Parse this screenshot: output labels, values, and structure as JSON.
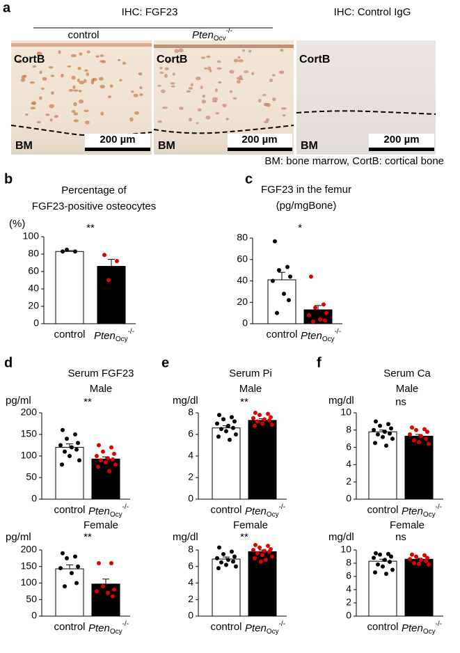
{
  "figure": {
    "panel": "a",
    "header_left": "IHC: FGF23",
    "header_right": "IHC: Control IgG",
    "columns": [
      "control",
      {
        "base": "Pten",
        "sub": "Ocy",
        "sup": "-/-"
      }
    ],
    "images": [
      {
        "top_label": "CortB",
        "bottom_label": "BM",
        "scale": "200 µm"
      },
      {
        "top_label": "CortB",
        "bottom_label": "BM",
        "scale": "200 µm"
      },
      {
        "top_label": "CortB",
        "bottom_label": "BM",
        "scale": "200 µm"
      }
    ],
    "caption": "BM: bone marrow, CortB: cortical bone"
  },
  "chart_data": [
    {
      "type": "bar",
      "panel": "b",
      "title": [
        "Percentage of",
        "FGF23-positive osteocytes"
      ],
      "y_unit": "(%)",
      "annotation": "**",
      "categories": [
        "control",
        {
          "base": "Pten",
          "sub": "Ocy",
          "sup": "-/-"
        }
      ],
      "values": [
        83,
        66
      ],
      "errors": [
        1,
        8
      ],
      "points": [
        [
          83,
          83,
          85
        ],
        [
          79,
          72,
          50
        ]
      ],
      "colors": [
        "#ffffff",
        "#000000"
      ],
      "point_colors": [
        "#000000",
        "#e00000"
      ],
      "ylim": [
        0,
        100
      ],
      "yticks": [
        0,
        20,
        40,
        60,
        80,
        100
      ]
    },
    {
      "type": "bar",
      "panel": "c",
      "title": [
        "FGF23 in the femur",
        "(pg/mgBone)"
      ],
      "annotation": "*",
      "categories": [
        "control",
        {
          "base": "Pten",
          "sub": "Ocy",
          "sup": "-/-"
        }
      ],
      "values": [
        41,
        13
      ],
      "errors": [
        7,
        4
      ],
      "points": [
        [
          77,
          53,
          50,
          44,
          40,
          28,
          22,
          10
        ],
        [
          44,
          18,
          15,
          10,
          8,
          4,
          3,
          2
        ]
      ],
      "colors": [
        "#ffffff",
        "#000000"
      ],
      "point_colors": [
        "#000000",
        "#e00000"
      ],
      "ylim": [
        0,
        80
      ],
      "yticks": [
        0,
        20,
        40,
        60,
        80
      ]
    },
    {
      "type": "bar",
      "panel": "d",
      "title": [
        "Serum FGF23"
      ],
      "subtitle": "Male",
      "y_unit": "pg/ml",
      "annotation": "**",
      "categories": [
        "control",
        {
          "base": "Pten",
          "sub": "Ocy",
          "sup": "-/-"
        }
      ],
      "values": [
        120,
        93
      ],
      "errors": [
        8,
        5
      ],
      "points": [
        [
          160,
          150,
          140,
          130,
          125,
          120,
          115,
          110,
          100,
          90,
          80
        ],
        [
          125,
          120,
          110,
          105,
          100,
          95,
          92,
          90,
          85,
          80,
          75,
          65
        ]
      ],
      "colors": [
        "#ffffff",
        "#000000"
      ],
      "point_colors": [
        "#000000",
        "#e00000"
      ],
      "ylim": [
        0,
        200
      ],
      "yticks": [
        0,
        50,
        100,
        150,
        200
      ]
    },
    {
      "type": "bar",
      "subtitle": "Female",
      "y_unit": "pg/ml",
      "annotation": "**",
      "categories": [
        "control",
        {
          "base": "Pten",
          "sub": "Ocy",
          "sup": "-/-"
        }
      ],
      "values": [
        143,
        97
      ],
      "errors": [
        12,
        15
      ],
      "points": [
        [
          190,
          180,
          175,
          150,
          145,
          130,
          100,
          90
        ],
        [
          160,
          160,
          90,
          80,
          75,
          70,
          60
        ]
      ],
      "colors": [
        "#ffffff",
        "#000000"
      ],
      "point_colors": [
        "#000000",
        "#e00000"
      ],
      "ylim": [
        0,
        200
      ],
      "yticks": [
        0,
        50,
        100,
        150,
        200
      ]
    },
    {
      "type": "bar",
      "panel": "e",
      "title": [
        "Serum Pi"
      ],
      "subtitle": "Male",
      "y_unit": "mg/dl",
      "annotation": "**",
      "categories": [
        "control",
        {
          "base": "Pten",
          "sub": "Ocy",
          "sup": "-/-"
        }
      ],
      "values": [
        6.6,
        7.3
      ],
      "errors": [
        0.2,
        0.15
      ],
      "points": [
        [
          7.8,
          7.6,
          7.4,
          7.2,
          7,
          6.8,
          6.6,
          6.5,
          6.3,
          6,
          5.8,
          5.5
        ],
        [
          8,
          7.9,
          7.8,
          7.6,
          7.5,
          7.4,
          7.3,
          7.2,
          7,
          6.9,
          6.8
        ]
      ],
      "colors": [
        "#ffffff",
        "#000000"
      ],
      "point_colors": [
        "#000000",
        "#e00000"
      ],
      "ylim": [
        0,
        8
      ],
      "yticks": [
        0,
        2,
        4,
        6,
        8
      ]
    },
    {
      "type": "bar",
      "subtitle": "Female",
      "y_unit": "mg/dl",
      "annotation": "**",
      "categories": [
        "control",
        {
          "base": "Pten",
          "sub": "Ocy",
          "sup": "-/-"
        }
      ],
      "values": [
        6.9,
        7.8
      ],
      "errors": [
        0.25,
        0.2
      ],
      "points": [
        [
          8.3,
          7.8,
          7.5,
          7.2,
          7,
          6.8,
          6.6,
          6.5,
          6.2,
          6,
          5.8
        ],
        [
          8.6,
          8.5,
          8.3,
          8.1,
          8,
          7.9,
          7.8,
          7.6,
          7.4,
          7.2,
          7,
          6.8,
          6.6
        ]
      ],
      "colors": [
        "#ffffff",
        "#000000"
      ],
      "point_colors": [
        "#000000",
        "#e00000"
      ],
      "ylim": [
        0,
        8
      ],
      "yticks": [
        0,
        2,
        4,
        6,
        8
      ]
    },
    {
      "type": "bar",
      "panel": "f",
      "title": [
        "Serum Ca"
      ],
      "subtitle": "Male",
      "y_unit": "mg/dl",
      "annotation": "ns",
      "categories": [
        "control",
        {
          "base": "Pten",
          "sub": "Ocy",
          "sup": "-/-"
        }
      ],
      "values": [
        7.8,
        7.3
      ],
      "errors": [
        0.2,
        0.2
      ],
      "points": [
        [
          9,
          8.7,
          8.5,
          8.2,
          8,
          7.8,
          7.6,
          7.5,
          7.2,
          7,
          6.5,
          6.2
        ],
        [
          8.3,
          8.1,
          8,
          7.8,
          7.5,
          7.3,
          7,
          6.8,
          6.6,
          6.4
        ]
      ],
      "colors": [
        "#ffffff",
        "#000000"
      ],
      "point_colors": [
        "#000000",
        "#e00000"
      ],
      "ylim": [
        0,
        10
      ],
      "yticks": [
        0,
        2,
        4,
        6,
        8,
        10
      ]
    },
    {
      "type": "bar",
      "subtitle": "Female",
      "y_unit": "mg/dl",
      "annotation": "ns",
      "categories": [
        "control",
        {
          "base": "Pten",
          "sub": "Ocy",
          "sup": "-/-"
        }
      ],
      "values": [
        8.3,
        8.6
      ],
      "errors": [
        0.3,
        0.15
      ],
      "points": [
        [
          9.5,
          9.4,
          9.3,
          9,
          8.8,
          8.5,
          8.2,
          7.8,
          7.5,
          7,
          6.6,
          6.4
        ],
        [
          9.3,
          9.2,
          9,
          8.8,
          8.6,
          8.5,
          8.3,
          8,
          7.9,
          7.8
        ]
      ],
      "colors": [
        "#ffffff",
        "#000000"
      ],
      "point_colors": [
        "#000000",
        "#e00000"
      ],
      "ylim": [
        0,
        10
      ],
      "yticks": [
        0,
        2,
        4,
        6,
        8,
        10
      ]
    }
  ]
}
